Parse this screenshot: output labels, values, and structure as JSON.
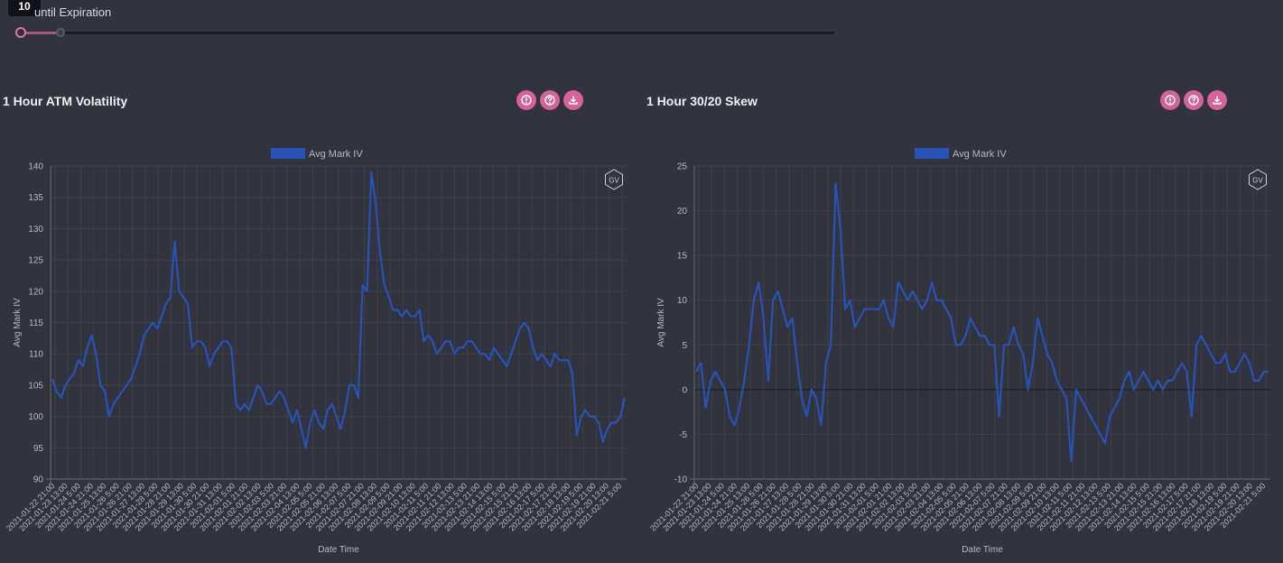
{
  "slider": {
    "value": "10",
    "label": "until Expiration"
  },
  "colors": {
    "background": "#32333e",
    "accent": "#d4639c",
    "series": "#2653b5",
    "grid": "#3f4049",
    "axis_text": "#b8b8c0"
  },
  "panels": [
    {
      "title": "1 Hour ATM Volatility",
      "actions": [
        "info-icon",
        "help-icon",
        "download-icon"
      ],
      "watermark": "GV"
    },
    {
      "title": "1 Hour 30/20 Skew",
      "actions": [
        "info-icon",
        "help-icon",
        "download-icon"
      ],
      "watermark": "GV"
    }
  ],
  "chart_data": [
    {
      "type": "line",
      "title": "1 Hour ATM Volatility",
      "xlabel": "Date Time",
      "ylabel": "Avg Mark IV",
      "ylim": [
        90,
        140
      ],
      "yticks": [
        90,
        95,
        100,
        105,
        110,
        115,
        120,
        125,
        130,
        135,
        140
      ],
      "grid": true,
      "legend_position": "top",
      "x_tick_labels": [
        "2021-01-22 21:00",
        "2021-01-23 13:00",
        "2021-01-24 5:00",
        "2021-01-24 21:00",
        "2021-01-25 13:00",
        "2021-01-26 5:00",
        "2021-01-26 21:00",
        "2021-01-27 13:00",
        "2021-01-28 5:00",
        "2021-01-28 21:00",
        "2021-01-29 13:00",
        "2021-01-30 5:00",
        "2021-01-30 21:00",
        "2021-01-31 13:00",
        "2021-02-01 5:00",
        "2021-02-01 21:00",
        "2021-02-02 13:00",
        "2021-02-03 5:00",
        "2021-02-03 21:00",
        "2021-02-04 13:00",
        "2021-02-05 5:00",
        "2021-02-05 21:00",
        "2021-02-06 13:00",
        "2021-02-07 5:00",
        "2021-02-07 21:00",
        "2021-02-08 13:00",
        "2021-02-09 5:00",
        "2021-02-09 21:00",
        "2021-02-10 13:00",
        "2021-02-11 5:00",
        "2021-02-11 21:00",
        "2021-02-12 13:00",
        "2021-02-13 5:00",
        "2021-02-13 21:00",
        "2021-02-14 13:00",
        "2021-02-15 5:00",
        "2021-02-15 21:00",
        "2021-02-16 13:00",
        "2021-02-17 5:00",
        "2021-02-17 21:00",
        "2021-02-18 13:00",
        "2021-02-19 5:00",
        "2021-02-19 21:00",
        "2021-02-20 13:00",
        "2021-02-21 5:00"
      ],
      "series": [
        {
          "name": "Avg Mark IV",
          "values": [
            106,
            104,
            103,
            105,
            106,
            107,
            109,
            108,
            111,
            113,
            110,
            105,
            104,
            100,
            102,
            103,
            104,
            105,
            106,
            108,
            110,
            113,
            114,
            115,
            114,
            116,
            118,
            119,
            128,
            120,
            119,
            118,
            111,
            112,
            112,
            111,
            108,
            110,
            111,
            112,
            112,
            111,
            102,
            101,
            102,
            101,
            103,
            105,
            104,
            102,
            102,
            103,
            104,
            103,
            101,
            99,
            101,
            98,
            95,
            99,
            101,
            99,
            98,
            101,
            102,
            100,
            98,
            101,
            105,
            105,
            103,
            121,
            120,
            139,
            134,
            126,
            121,
            119,
            117,
            117,
            116,
            117,
            116,
            116,
            117,
            112,
            113,
            112,
            110,
            111,
            112,
            112,
            110,
            111,
            111,
            112,
            112,
            111,
            110,
            110,
            109,
            111,
            110,
            109,
            108,
            110,
            112,
            114,
            115,
            114,
            111,
            109,
            110,
            109,
            108,
            110,
            109,
            109,
            109,
            107,
            97,
            100,
            101,
            100,
            100,
            99,
            96,
            98,
            99,
            99,
            100,
            103
          ]
        }
      ]
    },
    {
      "type": "line",
      "title": "1 Hour 30/20 Skew",
      "xlabel": "Date Time",
      "ylabel": "Avg Mark IV",
      "ylim": [
        -10,
        25
      ],
      "yticks": [
        -10,
        -5,
        0,
        5,
        10,
        15,
        20,
        25
      ],
      "grid": true,
      "legend_position": "top",
      "x_tick_labels": [
        "2021-01-22 21:00",
        "2021-01-23 13:00",
        "2021-01-24 5:00",
        "2021-01-24 21:00",
        "2021-01-25 13:00",
        "2021-01-26 5:00",
        "2021-01-26 21:00",
        "2021-01-27 13:00",
        "2021-01-28 5:00",
        "2021-01-28 21:00",
        "2021-01-29 13:00",
        "2021-01-30 5:00",
        "2021-01-30 21:00",
        "2021-01-31 13:00",
        "2021-02-01 5:00",
        "2021-02-01 21:00",
        "2021-02-02 13:00",
        "2021-02-03 5:00",
        "2021-02-03 21:00",
        "2021-02-04 13:00",
        "2021-02-05 5:00",
        "2021-02-05 21:00",
        "2021-02-06 13:00",
        "2021-02-07 5:00",
        "2021-02-07 21:00",
        "2021-02-08 13:00",
        "2021-02-09 5:00",
        "2021-02-09 21:00",
        "2021-02-10 13:00",
        "2021-02-11 5:00",
        "2021-02-11 21:00",
        "2021-02-12 13:00",
        "2021-02-13 5:00",
        "2021-02-13 21:00",
        "2021-02-14 13:00",
        "2021-02-15 5:00",
        "2021-02-15 21:00",
        "2021-02-16 13:00",
        "2021-02-17 5:00",
        "2021-02-17 21:00",
        "2021-02-18 13:00",
        "2021-02-19 5:00",
        "2021-02-19 21:00",
        "2021-02-20 13:00",
        "2021-02-21 5:00"
      ],
      "series": [
        {
          "name": "Avg Mark IV",
          "values": [
            2,
            3,
            -2,
            1,
            2,
            1,
            0,
            -3,
            -4,
            -2,
            1,
            5,
            10,
            12,
            8,
            1,
            10,
            11,
            9,
            7,
            8,
            3,
            -1,
            -3,
            0,
            -1,
            -4,
            3,
            5,
            23,
            18,
            9,
            10,
            7,
            8,
            9,
            9,
            9,
            9,
            10,
            8,
            7,
            12,
            11,
            10,
            11,
            10,
            9,
            10,
            12,
            10,
            10,
            9,
            8,
            5,
            5,
            6,
            8,
            7,
            6,
            6,
            5,
            5,
            -3,
            5,
            5,
            7,
            5,
            4,
            0,
            3,
            8,
            6,
            4,
            3,
            1,
            0,
            -1,
            -8,
            0,
            -1,
            -2,
            -3,
            -4,
            -5,
            -6,
            -3,
            -2,
            -1,
            1,
            2,
            0,
            1,
            2,
            1,
            0,
            1,
            0,
            1,
            1,
            2,
            3,
            2,
            -3,
            5,
            6,
            5,
            4,
            3,
            3,
            4,
            2,
            2,
            3,
            4,
            3,
            1,
            1,
            2,
            2
          ]
        }
      ]
    }
  ]
}
